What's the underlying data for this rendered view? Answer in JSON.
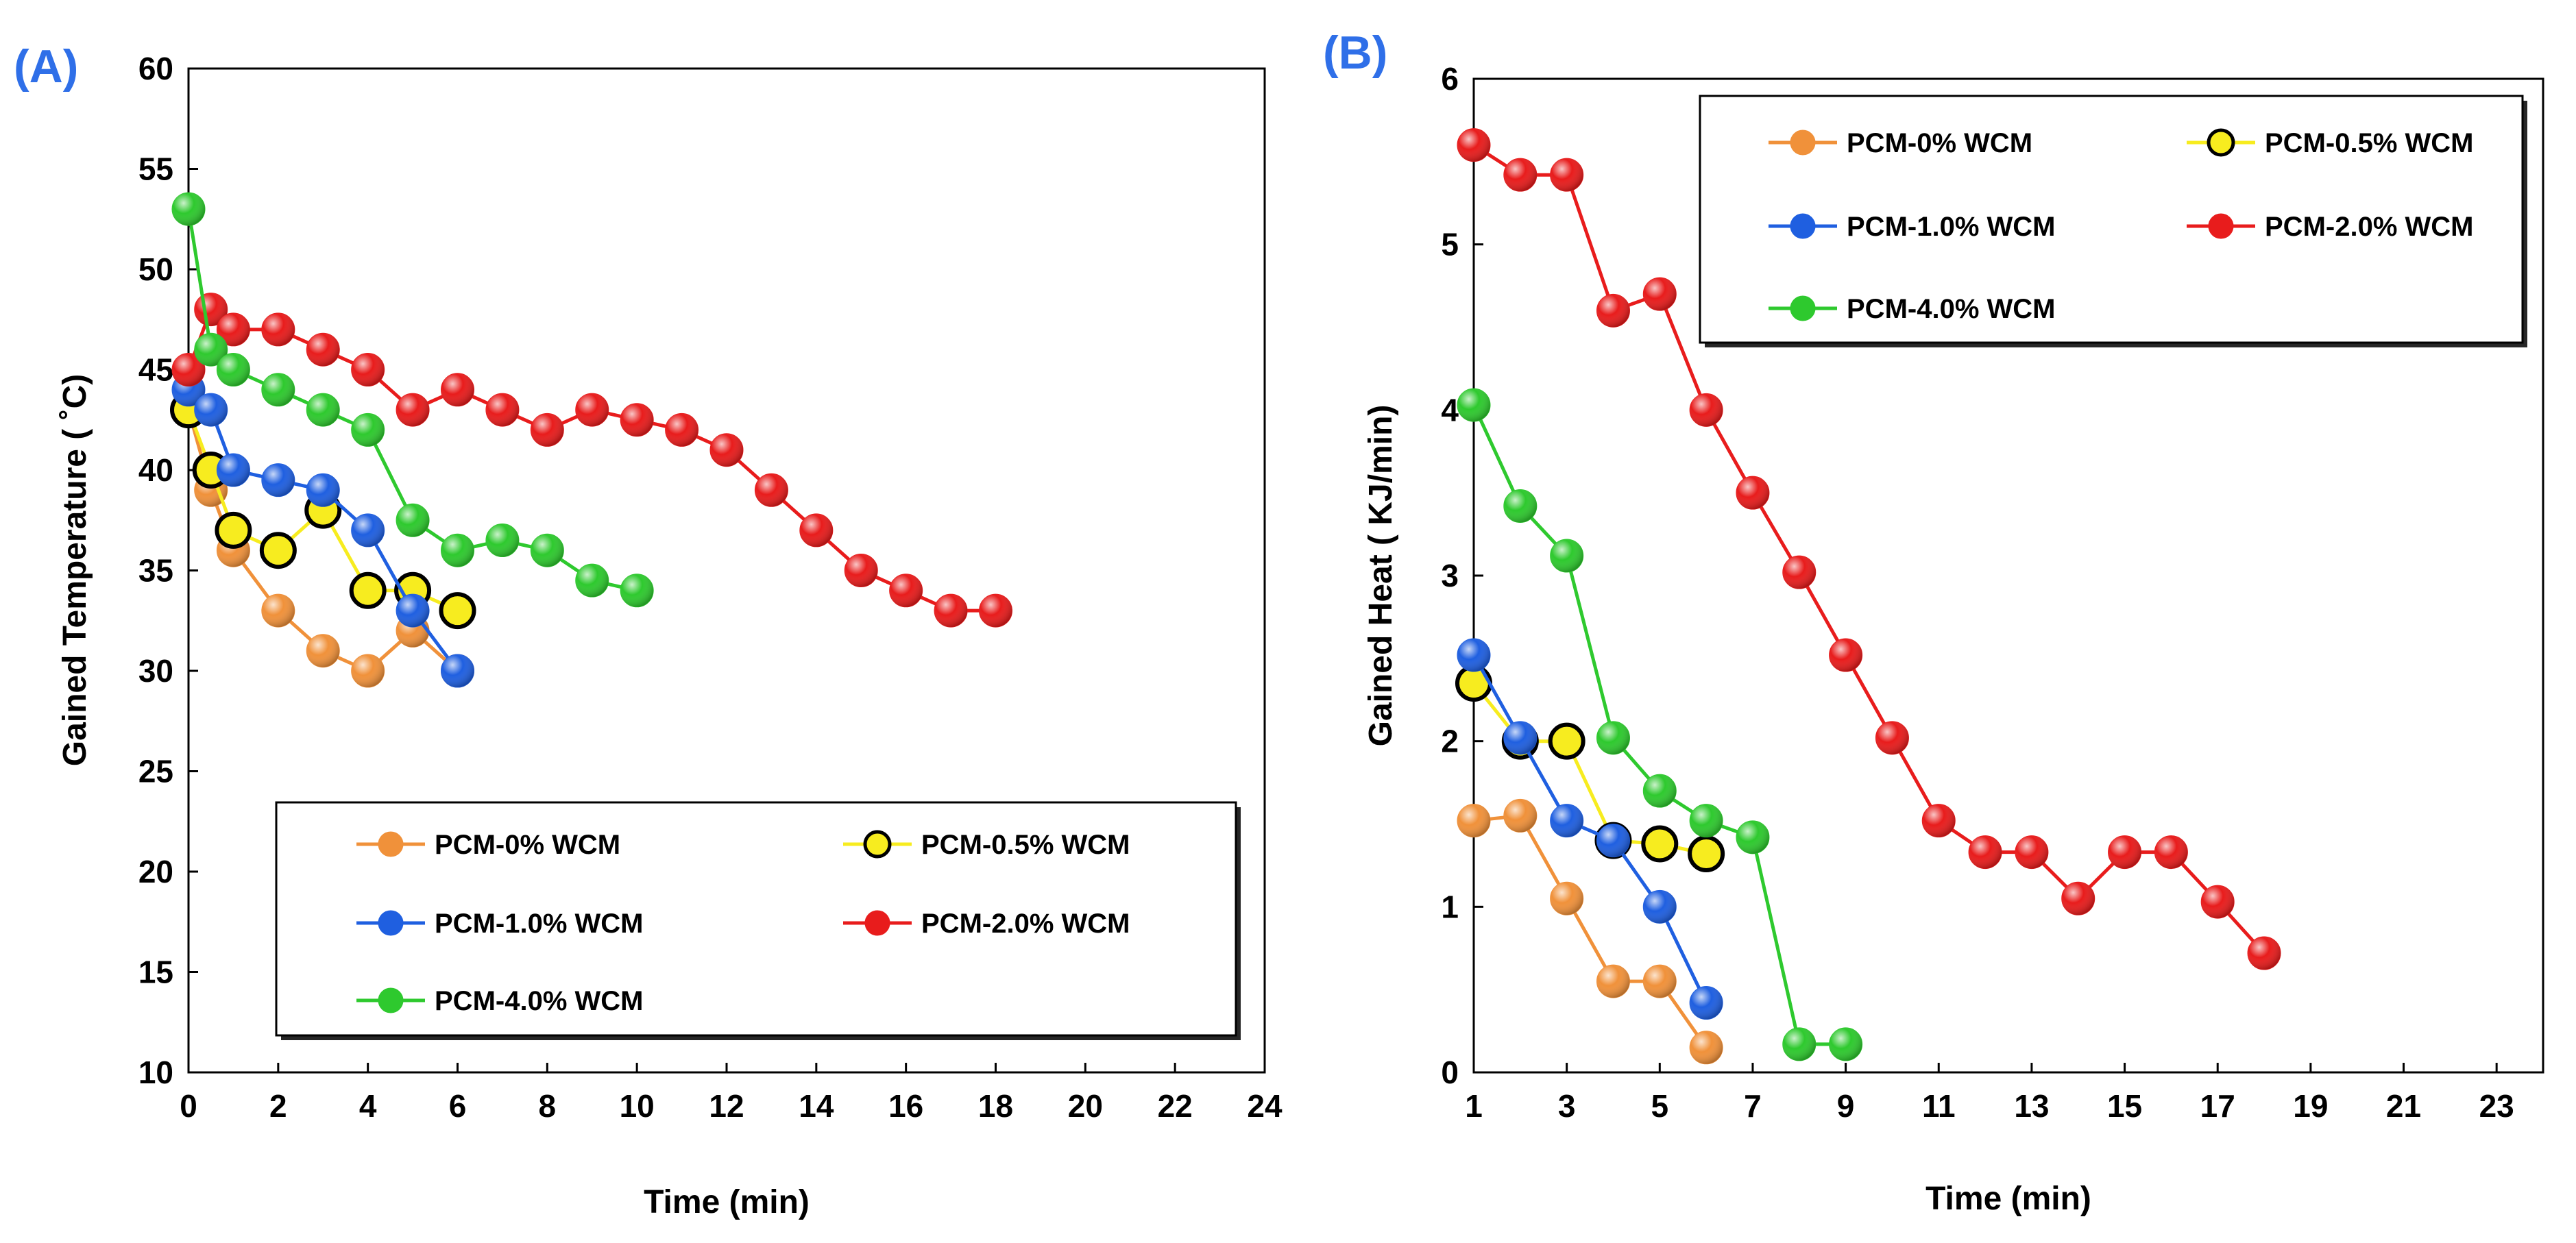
{
  "chart_data": [
    {
      "type": "line",
      "panel_label": "(A)",
      "xlabel": "Time (min)",
      "ylabel": "Gained Temperature ( ˚C)",
      "xlim": [
        0,
        24
      ],
      "ylim": [
        10,
        60
      ],
      "xticks": [
        "0",
        "2",
        "4",
        "6",
        "8",
        "10",
        "12",
        "14",
        "16",
        "18",
        "20",
        "22",
        "24"
      ],
      "yticks": [
        "10",
        "15",
        "20",
        "25",
        "30",
        "35",
        "40",
        "45",
        "50",
        "55",
        "60"
      ],
      "grid": false,
      "legend_position": "bottom-right",
      "legend": [
        "PCM-0% WCM",
        "PCM-0.5% WCM",
        "PCM-1.0% WCM",
        "PCM-2.0% WCM",
        "PCM-4.0% WCM"
      ],
      "series": [
        {
          "name": "PCM-0% WCM",
          "color": "#f0913a",
          "line": "#f0913a",
          "x": [
            0,
            0.5,
            1,
            2,
            3,
            4,
            5,
            6
          ],
          "y": [
            43,
            39,
            36,
            33,
            31,
            30,
            32,
            30
          ]
        },
        {
          "name": "PCM-0.5% WCM",
          "color": "#f7ec1f",
          "line": "#f7ec1f",
          "outline": "#000000",
          "x": [
            0,
            0.5,
            1,
            2,
            3,
            4,
            5,
            6
          ],
          "y": [
            43,
            40,
            37,
            36,
            38,
            34,
            34,
            33
          ]
        },
        {
          "name": "PCM-1.0% WCM",
          "color": "#1f5fe0",
          "line": "#1f5fe0",
          "x": [
            0,
            0.5,
            1,
            2,
            3,
            4,
            5,
            6
          ],
          "y": [
            44,
            43,
            40,
            39.5,
            39,
            37,
            33,
            30
          ]
        },
        {
          "name": "PCM-2.0% WCM",
          "color": "#e81c1c",
          "line": "#e81c1c",
          "x": [
            0,
            0.5,
            1,
            2,
            3,
            4,
            5,
            6,
            7,
            8,
            9,
            10,
            11,
            12,
            13,
            14,
            15,
            16,
            17,
            18
          ],
          "y": [
            45,
            48,
            47,
            47,
            46,
            45,
            43,
            44,
            43,
            42,
            43,
            42.5,
            42,
            41,
            39,
            37,
            35,
            34,
            33,
            33
          ]
        },
        {
          "name": "PCM-4.0% WCM",
          "color": "#2ec92e",
          "line": "#2ec92e",
          "x": [
            0,
            0.5,
            1,
            2,
            3,
            4,
            5,
            6,
            7,
            8,
            9,
            10
          ],
          "y": [
            53,
            46,
            45,
            44,
            43,
            42,
            37.5,
            36,
            36.5,
            36,
            34.5,
            34
          ]
        }
      ]
    },
    {
      "type": "line",
      "panel_label": "(B)",
      "xlabel": "Time (min)",
      "ylabel": "Gained Heat ( KJ/min)",
      "xlim": [
        1,
        24
      ],
      "ylim": [
        0,
        6
      ],
      "xticks": [
        "1",
        "3",
        "5",
        "7",
        "9",
        "11",
        "13",
        "15",
        "17",
        "19",
        "21",
        "23"
      ],
      "yticks": [
        "0",
        "1",
        "2",
        "3",
        "4",
        "5",
        "6"
      ],
      "grid": false,
      "legend_position": "top-right",
      "legend": [
        "PCM-0% WCM",
        "PCM-0.5% WCM",
        "PCM-1.0% WCM",
        "PCM-2.0% WCM",
        "PCM-4.0% WCM"
      ],
      "series": [
        {
          "name": "PCM-0% WCM",
          "color": "#f0913a",
          "line": "#f0913a",
          "x": [
            1,
            2,
            3,
            4,
            5,
            6
          ],
          "y": [
            1.52,
            1.55,
            1.05,
            0.55,
            0.55,
            0.15
          ]
        },
        {
          "name": "PCM-0.5% WCM",
          "color": "#f7ec1f",
          "line": "#f7ec1f",
          "outline": "#000000",
          "x": [
            1,
            2,
            3,
            4,
            5,
            6
          ],
          "y": [
            2.35,
            2.0,
            2.0,
            1.4,
            1.38,
            1.32
          ]
        },
        {
          "name": "PCM-1.0% WCM",
          "color": "#1f5fe0",
          "line": "#1f5fe0",
          "x": [
            1,
            2,
            3,
            4,
            5,
            6
          ],
          "y": [
            2.52,
            2.02,
            1.52,
            1.4,
            1.0,
            0.42
          ]
        },
        {
          "name": "PCM-2.0% WCM",
          "color": "#e81c1c",
          "line": "#e81c1c",
          "x": [
            1,
            2,
            3,
            4,
            5,
            6,
            7,
            8,
            9,
            10,
            11,
            12,
            13,
            14,
            15,
            16,
            17,
            18
          ],
          "y": [
            5.6,
            5.42,
            5.42,
            4.6,
            4.7,
            4.0,
            3.5,
            3.02,
            2.52,
            2.02,
            1.52,
            1.33,
            1.33,
            1.05,
            1.33,
            1.33,
            1.03,
            0.72
          ]
        },
        {
          "name": "PCM-4.0% WCM",
          "color": "#2ec92e",
          "line": "#2ec92e",
          "x": [
            1,
            2,
            3,
            4,
            5,
            6,
            7,
            8,
            9
          ],
          "y": [
            4.03,
            3.42,
            3.12,
            2.02,
            1.7,
            1.52,
            1.42,
            0.17,
            0.17
          ]
        }
      ]
    }
  ]
}
